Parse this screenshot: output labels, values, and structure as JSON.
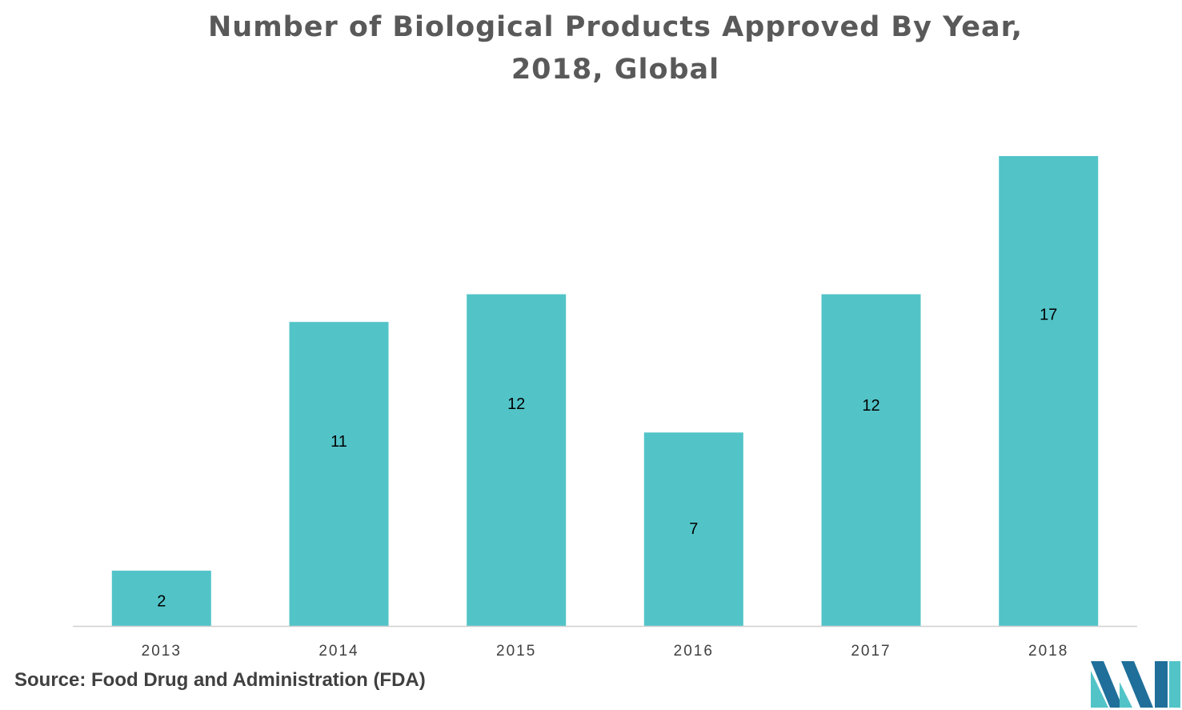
{
  "title_lines": [
    "Number of Biological Products Approved By Year,",
    "2018, Global"
  ],
  "source": "Source: Food Drug and Administration (FDA)",
  "colors": {
    "bar": "#52c4c8",
    "axis": "#d0d0d0",
    "title": "#595959",
    "logo_dark": "#1f6f9a",
    "logo_light": "#52c4c8"
  },
  "logo_icon": "mordor-intelligence-logo-icon",
  "chart_data": {
    "type": "bar",
    "title": "Number of Biological Products Approved By Year, 2018, Global",
    "categories": [
      "2013",
      "2014",
      "2015",
      "2016",
      "2017",
      "2018"
    ],
    "values": [
      2,
      11,
      12,
      7,
      12,
      17
    ],
    "data_labels": [
      "2",
      "11",
      "12",
      "7",
      "12",
      "17"
    ],
    "xlabel": "",
    "ylabel": "",
    "ylim": [
      0,
      17
    ],
    "grid": false,
    "legend": "none"
  }
}
